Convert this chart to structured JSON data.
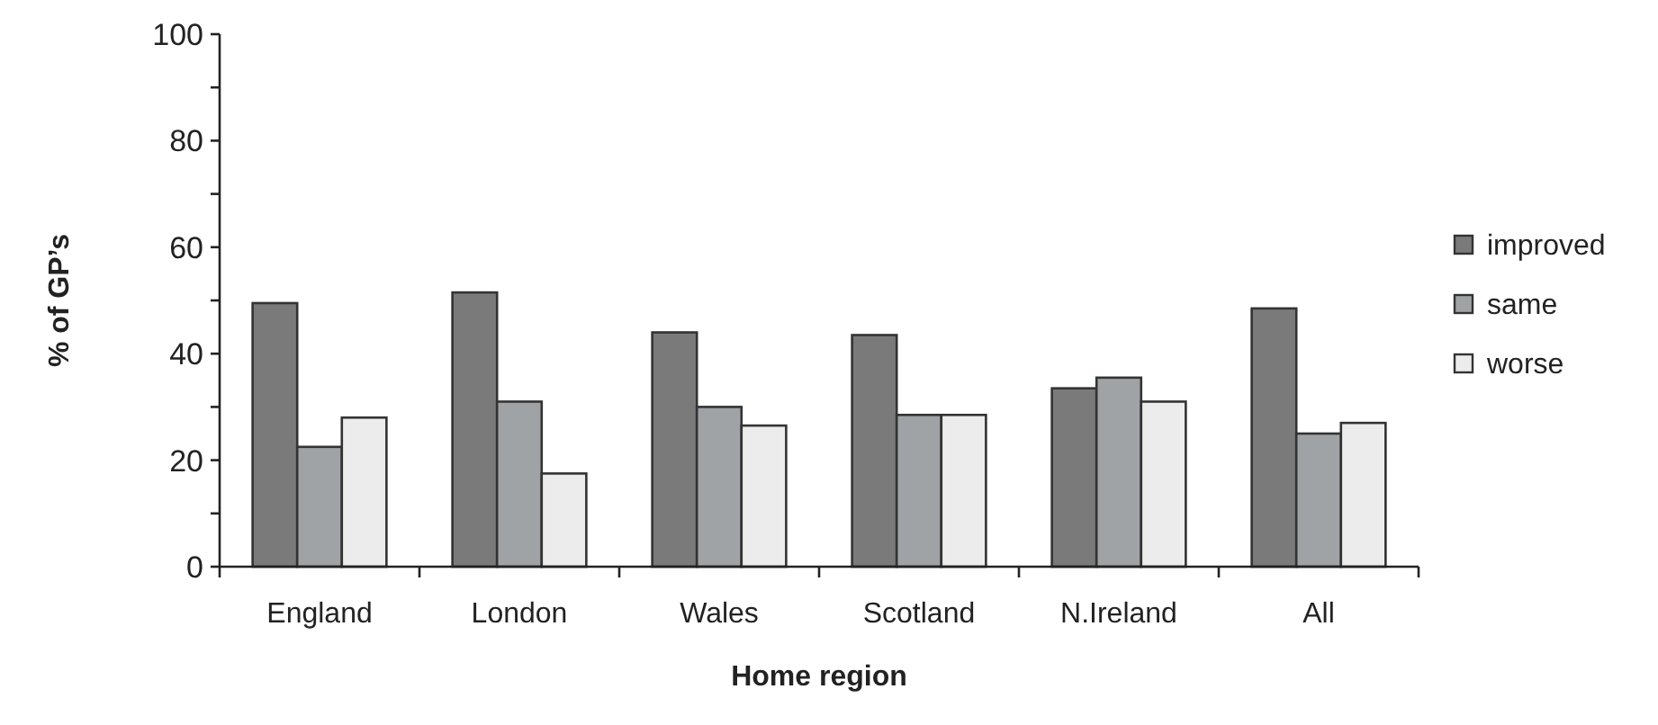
{
  "chart_data": {
    "type": "bar",
    "xlabel": "Home region",
    "ylabel": "% of GP’s",
    "categories": [
      "England",
      "London",
      "Wales",
      "Scotland",
      "N.Ireland",
      "All"
    ],
    "series": [
      {
        "name": "improved",
        "color": "#7a7a7a",
        "values": [
          49.5,
          51.5,
          44,
          43.5,
          33.5,
          48.5
        ]
      },
      {
        "name": "same",
        "color": "#a0a3a6",
        "values": [
          22.5,
          31,
          30,
          28.5,
          35.5,
          25
        ]
      },
      {
        "name": "worse",
        "color": "#ececec",
        "values": [
          28,
          17.5,
          26.5,
          28.5,
          31,
          27
        ]
      }
    ],
    "ylim": [
      0,
      100
    ],
    "yticks": [
      0,
      {
        "value": 10,
        "label": null
      },
      20,
      {
        "value": 30,
        "label": null
      },
      40,
      {
        "value": 50,
        "label": null
      },
      60,
      {
        "value": 70,
        "label": null
      },
      80,
      {
        "value": 90,
        "label": null
      },
      100
    ],
    "grid": false,
    "legend": "right"
  }
}
